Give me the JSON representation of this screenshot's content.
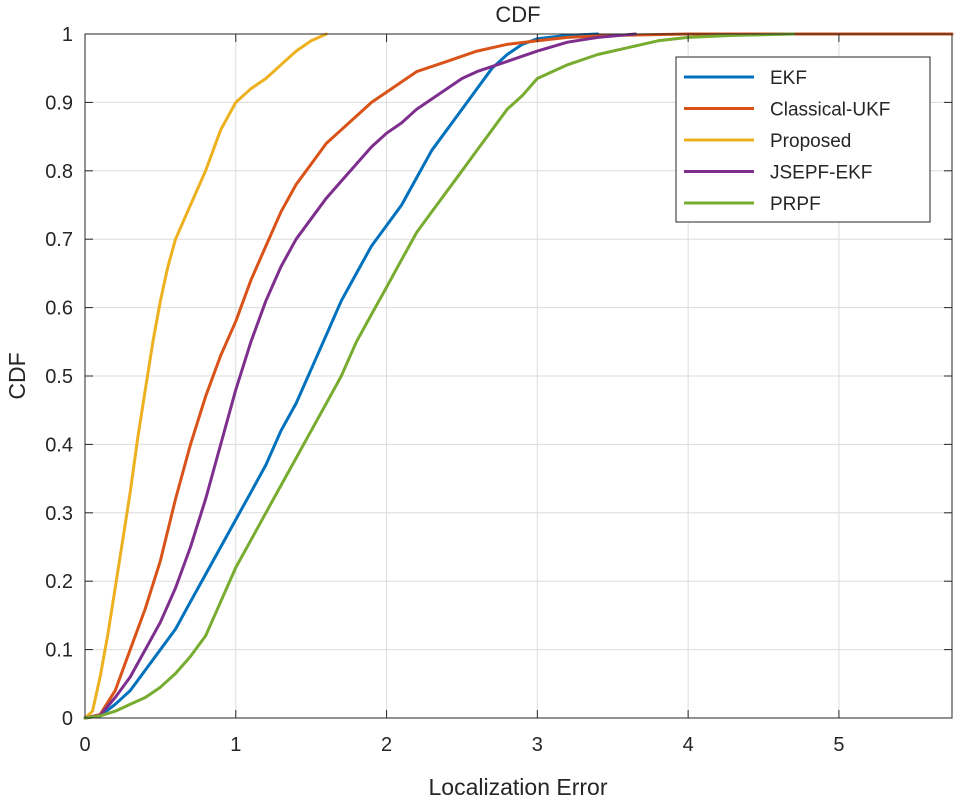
{
  "chart_data": {
    "type": "line",
    "title": "CDF",
    "xlabel": "Localization Error",
    "ylabel": "CDF",
    "xlim": [
      0,
      5.75
    ],
    "ylim": [
      0,
      1
    ],
    "xticks": [
      0,
      1,
      2,
      3,
      4,
      5
    ],
    "yticks": [
      0,
      0.1,
      0.2,
      0.3,
      0.4,
      0.5,
      0.6,
      0.7,
      0.8,
      0.9,
      1
    ],
    "xtick_labels": [
      "0",
      "1",
      "2",
      "3",
      "4",
      "5"
    ],
    "ytick_labels": [
      "0",
      "0.1",
      "0.2",
      "0.3",
      "0.4",
      "0.5",
      "0.6",
      "0.7",
      "0.8",
      "0.9",
      "1"
    ],
    "grid": true,
    "legend_position": "top-right",
    "series": [
      {
        "name": "EKF",
        "color": "#0072BD",
        "points": [
          [
            0,
            0
          ],
          [
            0.1,
            0.003
          ],
          [
            0.2,
            0.02
          ],
          [
            0.3,
            0.04
          ],
          [
            0.4,
            0.07
          ],
          [
            0.5,
            0.1
          ],
          [
            0.6,
            0.13
          ],
          [
            0.7,
            0.17
          ],
          [
            0.8,
            0.21
          ],
          [
            0.9,
            0.25
          ],
          [
            1.0,
            0.29
          ],
          [
            1.1,
            0.33
          ],
          [
            1.2,
            0.37
          ],
          [
            1.3,
            0.42
          ],
          [
            1.4,
            0.46
          ],
          [
            1.5,
            0.51
          ],
          [
            1.6,
            0.56
          ],
          [
            1.7,
            0.61
          ],
          [
            1.8,
            0.65
          ],
          [
            1.9,
            0.69
          ],
          [
            2.0,
            0.72
          ],
          [
            2.1,
            0.75
          ],
          [
            2.2,
            0.79
          ],
          [
            2.3,
            0.83
          ],
          [
            2.4,
            0.86
          ],
          [
            2.5,
            0.89
          ],
          [
            2.6,
            0.92
          ],
          [
            2.7,
            0.95
          ],
          [
            2.8,
            0.97
          ],
          [
            2.9,
            0.985
          ],
          [
            3.0,
            0.993
          ],
          [
            3.2,
            0.998
          ],
          [
            3.4,
            1.0
          ]
        ]
      },
      {
        "name": "Classical-UKF",
        "color": "#D95319",
        "points": [
          [
            0,
            0
          ],
          [
            0.1,
            0.005
          ],
          [
            0.2,
            0.04
          ],
          [
            0.3,
            0.1
          ],
          [
            0.4,
            0.16
          ],
          [
            0.5,
            0.23
          ],
          [
            0.6,
            0.32
          ],
          [
            0.7,
            0.4
          ],
          [
            0.8,
            0.47
          ],
          [
            0.9,
            0.53
          ],
          [
            1.0,
            0.58
          ],
          [
            1.1,
            0.64
          ],
          [
            1.2,
            0.69
          ],
          [
            1.3,
            0.74
          ],
          [
            1.4,
            0.78
          ],
          [
            1.5,
            0.81
          ],
          [
            1.6,
            0.84
          ],
          [
            1.7,
            0.86
          ],
          [
            1.8,
            0.88
          ],
          [
            1.9,
            0.9
          ],
          [
            2.0,
            0.915
          ],
          [
            2.1,
            0.93
          ],
          [
            2.2,
            0.945
          ],
          [
            2.4,
            0.96
          ],
          [
            2.6,
            0.975
          ],
          [
            2.8,
            0.985
          ],
          [
            3.0,
            0.99
          ],
          [
            3.2,
            0.995
          ],
          [
            3.5,
            0.998
          ],
          [
            4.0,
            1.0
          ],
          [
            5.75,
            1.0
          ]
        ]
      },
      {
        "name": "Proposed",
        "color": "#EDB120",
        "points": [
          [
            0,
            0
          ],
          [
            0.05,
            0.01
          ],
          [
            0.1,
            0.06
          ],
          [
            0.15,
            0.12
          ],
          [
            0.2,
            0.19
          ],
          [
            0.25,
            0.26
          ],
          [
            0.3,
            0.33
          ],
          [
            0.35,
            0.41
          ],
          [
            0.4,
            0.48
          ],
          [
            0.45,
            0.55
          ],
          [
            0.5,
            0.61
          ],
          [
            0.55,
            0.66
          ],
          [
            0.6,
            0.7
          ],
          [
            0.7,
            0.75
          ],
          [
            0.8,
            0.8
          ],
          [
            0.9,
            0.86
          ],
          [
            1.0,
            0.9
          ],
          [
            1.1,
            0.92
          ],
          [
            1.2,
            0.935
          ],
          [
            1.3,
            0.955
          ],
          [
            1.4,
            0.975
          ],
          [
            1.5,
            0.99
          ],
          [
            1.6,
            1.0
          ]
        ]
      },
      {
        "name": "JSEPF-EKF",
        "color": "#7E2F8E",
        "points": [
          [
            0,
            0
          ],
          [
            0.1,
            0.004
          ],
          [
            0.2,
            0.03
          ],
          [
            0.3,
            0.06
          ],
          [
            0.4,
            0.1
          ],
          [
            0.5,
            0.14
          ],
          [
            0.6,
            0.19
          ],
          [
            0.7,
            0.25
          ],
          [
            0.8,
            0.32
          ],
          [
            0.9,
            0.4
          ],
          [
            1.0,
            0.48
          ],
          [
            1.1,
            0.55
          ],
          [
            1.2,
            0.61
          ],
          [
            1.3,
            0.66
          ],
          [
            1.4,
            0.7
          ],
          [
            1.5,
            0.73
          ],
          [
            1.6,
            0.76
          ],
          [
            1.7,
            0.785
          ],
          [
            1.8,
            0.81
          ],
          [
            1.9,
            0.835
          ],
          [
            2.0,
            0.855
          ],
          [
            2.1,
            0.87
          ],
          [
            2.2,
            0.89
          ],
          [
            2.3,
            0.905
          ],
          [
            2.4,
            0.92
          ],
          [
            2.5,
            0.935
          ],
          [
            2.6,
            0.945
          ],
          [
            2.8,
            0.96
          ],
          [
            3.0,
            0.975
          ],
          [
            3.2,
            0.988
          ],
          [
            3.4,
            0.995
          ],
          [
            3.65,
            1.0
          ]
        ]
      },
      {
        "name": "PRPF",
        "color": "#77AC30",
        "points": [
          [
            0,
            0
          ],
          [
            0.1,
            0.003
          ],
          [
            0.2,
            0.01
          ],
          [
            0.3,
            0.02
          ],
          [
            0.4,
            0.03
          ],
          [
            0.5,
            0.045
          ],
          [
            0.6,
            0.065
          ],
          [
            0.7,
            0.09
          ],
          [
            0.8,
            0.12
          ],
          [
            0.9,
            0.17
          ],
          [
            1.0,
            0.22
          ],
          [
            1.1,
            0.26
          ],
          [
            1.2,
            0.3
          ],
          [
            1.3,
            0.34
          ],
          [
            1.4,
            0.38
          ],
          [
            1.5,
            0.42
          ],
          [
            1.6,
            0.46
          ],
          [
            1.7,
            0.5
          ],
          [
            1.8,
            0.55
          ],
          [
            1.9,
            0.59
          ],
          [
            2.0,
            0.63
          ],
          [
            2.1,
            0.67
          ],
          [
            2.2,
            0.71
          ],
          [
            2.3,
            0.74
          ],
          [
            2.4,
            0.77
          ],
          [
            2.5,
            0.8
          ],
          [
            2.6,
            0.83
          ],
          [
            2.7,
            0.86
          ],
          [
            2.8,
            0.89
          ],
          [
            2.9,
            0.91
          ],
          [
            3.0,
            0.935
          ],
          [
            3.2,
            0.955
          ],
          [
            3.4,
            0.97
          ],
          [
            3.6,
            0.98
          ],
          [
            3.8,
            0.99
          ],
          [
            4.0,
            0.995
          ],
          [
            4.3,
            0.998
          ],
          [
            4.7,
            1.0
          ]
        ]
      }
    ]
  }
}
